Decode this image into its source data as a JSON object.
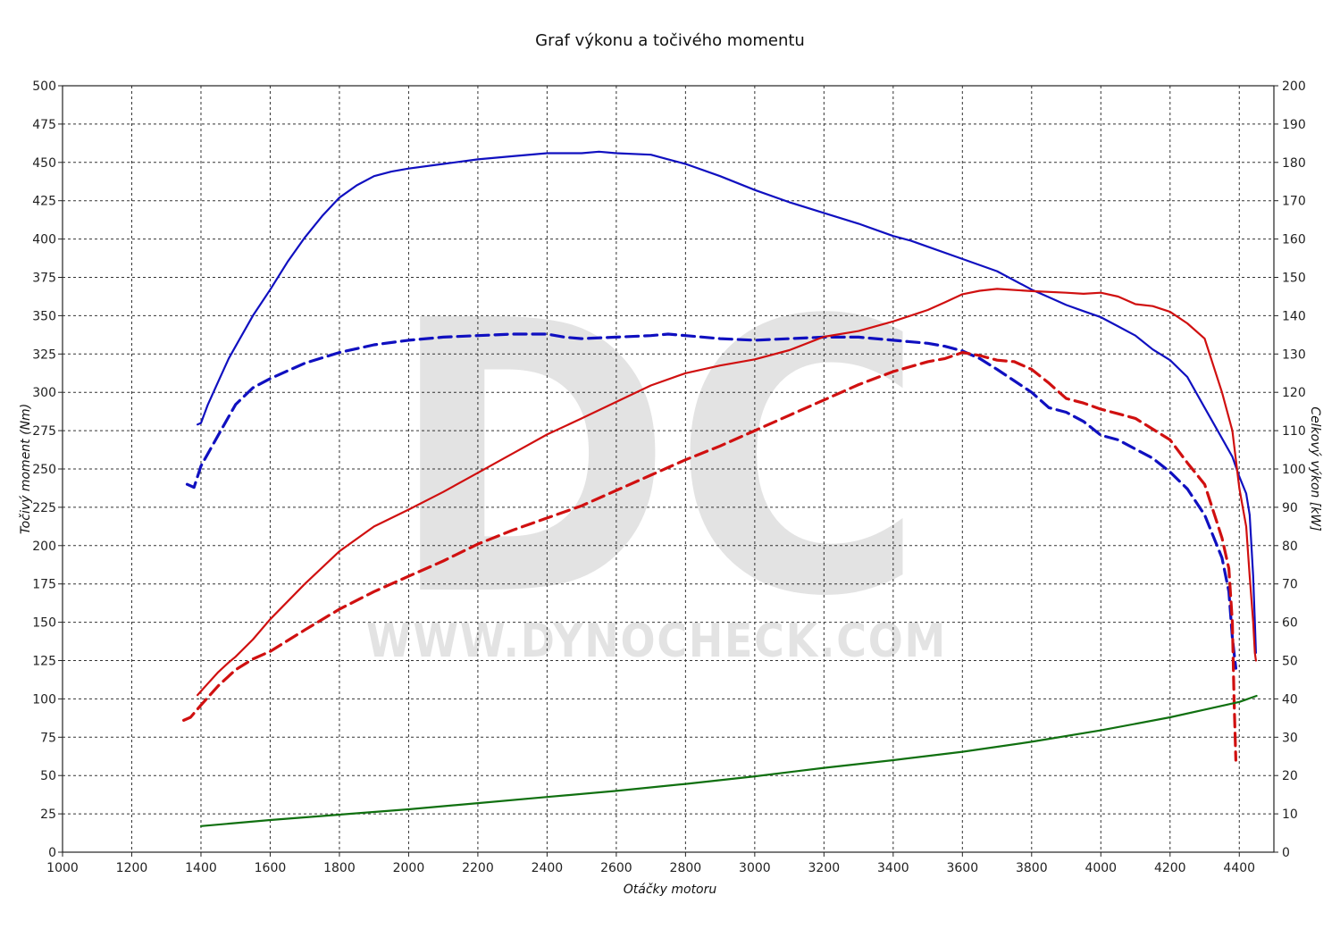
{
  "chart_data": {
    "type": "line",
    "title": "Graf výkonu a točivého momentu",
    "xlabel": "Otáčky motoru",
    "ylabel_left": "Točivý moment (Nm)",
    "ylabel_right": "Celkový výkon [kW]",
    "xlim": [
      1000,
      4500
    ],
    "ylim_left": [
      0,
      500
    ],
    "ylim_right": [
      0,
      200
    ],
    "x_ticks": [
      "1000",
      "1200",
      "1400",
      "1600",
      "1800",
      "2000",
      "2200",
      "2400",
      "2600",
      "2800",
      "3000",
      "3200",
      "3400",
      "3600",
      "3800",
      "4000",
      "4200",
      "4400"
    ],
    "y_ticks_left": [
      "0",
      "25",
      "50",
      "75",
      "100",
      "125",
      "150",
      "175",
      "200",
      "225",
      "250",
      "275",
      "300",
      "325",
      "350",
      "375",
      "400",
      "425",
      "450",
      "475",
      "500"
    ],
    "y_ticks_right": [
      "0",
      "10",
      "20",
      "30",
      "40",
      "50",
      "60",
      "70",
      "80",
      "90",
      "100",
      "110",
      "120",
      "130",
      "140",
      "150",
      "160",
      "170",
      "180",
      "190",
      "200"
    ],
    "grid": true,
    "watermark": {
      "letters": "DC",
      "url": "WWW.DYNOCHECK.COM"
    },
    "series": [
      {
        "key": "torque_tuned",
        "axis": "left",
        "color": "#1010c0",
        "dash": false,
        "x": [
          1390,
          1400,
          1420,
          1450,
          1480,
          1500,
          1550,
          1600,
          1650,
          1700,
          1750,
          1800,
          1850,
          1900,
          1950,
          2000,
          2100,
          2200,
          2300,
          2400,
          2500,
          2550,
          2600,
          2700,
          2750,
          2800,
          2900,
          3000,
          3100,
          3200,
          3300,
          3400,
          3450,
          3500,
          3600,
          3700,
          3800,
          3850,
          3900,
          3950,
          4000,
          4050,
          4100,
          4150,
          4200,
          4250,
          4300,
          4350,
          4380,
          4400,
          4420,
          4430,
          4440,
          4445,
          4448
        ],
        "y": [
          279,
          280,
          292,
          307,
          322,
          330,
          350,
          367,
          385,
          401,
          415,
          427,
          435,
          441,
          444,
          446,
          449,
          452,
          454,
          456,
          456,
          457,
          456,
          455,
          452,
          449,
          441,
          432,
          424,
          417,
          410,
          402,
          399,
          395,
          387,
          379,
          367,
          362,
          357,
          353,
          349,
          343,
          337,
          328,
          321,
          310,
          290,
          270,
          258,
          245,
          234,
          220,
          180,
          150,
          130
        ]
      },
      {
        "key": "torque_stock",
        "axis": "left",
        "color": "#1010c0",
        "dash": true,
        "x": [
          1360,
          1380,
          1400,
          1450,
          1500,
          1550,
          1600,
          1700,
          1800,
          1900,
          2000,
          2100,
          2200,
          2300,
          2400,
          2450,
          2500,
          2600,
          2700,
          2750,
          2800,
          2900,
          3000,
          3100,
          3200,
          3300,
          3400,
          3500,
          3550,
          3600,
          3650,
          3700,
          3800,
          3850,
          3900,
          3950,
          4000,
          4050,
          4100,
          4150,
          4200,
          4250,
          4300,
          4350,
          4370,
          4380,
          4390
        ],
        "y": [
          240,
          238,
          252,
          272,
          292,
          303,
          309,
          319,
          326,
          331,
          334,
          336,
          337,
          338,
          338,
          336,
          335,
          336,
          337,
          338,
          337,
          335,
          334,
          335,
          336,
          336,
          334,
          332,
          330,
          327,
          322,
          315,
          300,
          290,
          287,
          281,
          272,
          269,
          263,
          257,
          248,
          237,
          220,
          192,
          170,
          140,
          120
        ]
      },
      {
        "key": "power_tuned",
        "axis": "right",
        "color": "#d01010",
        "dash": false,
        "x": [
          1390,
          1400,
          1420,
          1450,
          1480,
          1500,
          1550,
          1600,
          1700,
          1800,
          1900,
          2000,
          2100,
          2200,
          2300,
          2400,
          2500,
          2600,
          2700,
          2800,
          2900,
          3000,
          3100,
          3200,
          3300,
          3400,
          3450,
          3500,
          3550,
          3600,
          3650,
          3700,
          3800,
          3900,
          3950,
          4000,
          4050,
          4100,
          4150,
          4200,
          4250,
          4300,
          4350,
          4380,
          4400,
          4420,
          4430,
          4440,
          4445,
          4448
        ],
        "y": [
          41,
          42,
          44,
          47,
          49.5,
          51,
          55.5,
          60.8,
          70,
          78.5,
          85,
          89.4,
          94,
          99,
          104,
          109,
          113.2,
          117.5,
          121.8,
          125,
          127,
          128.6,
          131,
          134.5,
          136,
          138.5,
          140,
          141.5,
          143.5,
          145.6,
          146.5,
          147,
          146.4,
          146,
          145.7,
          146,
          145,
          143,
          142.5,
          141,
          138,
          134,
          120,
          110,
          95,
          85,
          72,
          60,
          52,
          50
        ]
      },
      {
        "key": "power_stock",
        "axis": "right",
        "color": "#d01010",
        "dash": true,
        "x": [
          1350,
          1370,
          1400,
          1450,
          1500,
          1550,
          1600,
          1700,
          1800,
          1900,
          2000,
          2100,
          2200,
          2300,
          2400,
          2500,
          2600,
          2700,
          2800,
          2900,
          3000,
          3100,
          3200,
          3300,
          3400,
          3500,
          3550,
          3600,
          3650,
          3700,
          3750,
          3800,
          3850,
          3900,
          3950,
          4000,
          4050,
          4100,
          4150,
          4200,
          4250,
          4300,
          4350,
          4370,
          4380,
          4385,
          4390
        ],
        "y": [
          34.4,
          35.2,
          38.4,
          43.4,
          47.6,
          50.4,
          52.4,
          58,
          63.4,
          68,
          72,
          76,
          80.4,
          84,
          87.2,
          90.4,
          94.4,
          98.4,
          102.4,
          106,
          110,
          114,
          118,
          122,
          125.4,
          128,
          128.8,
          130.4,
          129.6,
          128.4,
          128,
          126,
          122.4,
          118.4,
          117.2,
          115.6,
          114.4,
          113.2,
          110.4,
          107.6,
          101.6,
          96,
          82,
          74,
          60,
          40,
          24
        ]
      },
      {
        "key": "loss",
        "axis": "left",
        "color": "#107010",
        "dash": false,
        "x": [
          1400,
          1600,
          1800,
          2000,
          2200,
          2400,
          2600,
          2800,
          3000,
          3200,
          3400,
          3600,
          3800,
          4000,
          4200,
          4300,
          4400,
          4450
        ],
        "y": [
          17,
          21,
          24.5,
          28,
          32,
          36,
          40,
          44.5,
          49.5,
          55,
          60,
          65.5,
          72,
          79.5,
          88,
          93,
          98,
          102
        ]
      }
    ]
  }
}
